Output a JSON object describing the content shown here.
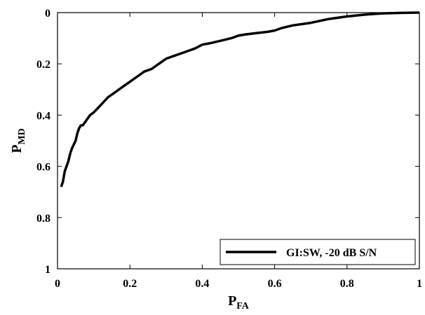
{
  "chart_data": {
    "type": "line",
    "xlabel_main": "P",
    "xlabel_sub": "FA",
    "ylabel_main": "P",
    "ylabel_sub": "MD",
    "xlim": [
      0,
      1
    ],
    "ylim": [
      0,
      1
    ],
    "y_reversed": true,
    "grid": false,
    "x_ticks": [
      "0",
      "0.2",
      "0.4",
      "0.6",
      "0.8",
      "1"
    ],
    "x_tick_values": [
      0,
      0.2,
      0.4,
      0.6,
      0.8,
      1
    ],
    "y_ticks": [
      "0",
      "0.2",
      "0.4",
      "0.6",
      "0.8",
      "1"
    ],
    "y_tick_values": [
      0,
      0.2,
      0.4,
      0.6,
      0.8,
      1
    ],
    "legend_position": "bottom-right",
    "series": [
      {
        "name": "GI:SW, -20 dB S/N",
        "color": "#000000",
        "x": [
          0.01,
          0.015,
          0.02,
          0.025,
          0.03,
          0.035,
          0.04,
          0.05,
          0.055,
          0.06,
          0.065,
          0.07,
          0.08,
          0.09,
          0.1,
          0.12,
          0.14,
          0.16,
          0.18,
          0.2,
          0.22,
          0.24,
          0.26,
          0.28,
          0.3,
          0.32,
          0.34,
          0.36,
          0.38,
          0.4,
          0.42,
          0.45,
          0.48,
          0.5,
          0.52,
          0.55,
          0.58,
          0.6,
          0.62,
          0.65,
          0.7,
          0.75,
          0.8,
          0.85,
          0.88,
          0.9,
          0.95,
          1.0
        ],
        "y": [
          0.68,
          0.66,
          0.62,
          0.6,
          0.58,
          0.55,
          0.53,
          0.5,
          0.47,
          0.45,
          0.44,
          0.44,
          0.42,
          0.4,
          0.39,
          0.36,
          0.33,
          0.31,
          0.29,
          0.27,
          0.25,
          0.23,
          0.22,
          0.2,
          0.18,
          0.17,
          0.16,
          0.15,
          0.14,
          0.125,
          0.12,
          0.11,
          0.1,
          0.09,
          0.085,
          0.08,
          0.075,
          0.07,
          0.06,
          0.05,
          0.04,
          0.025,
          0.015,
          0.008,
          0.005,
          0.003,
          0.001,
          0.0
        ]
      }
    ]
  }
}
